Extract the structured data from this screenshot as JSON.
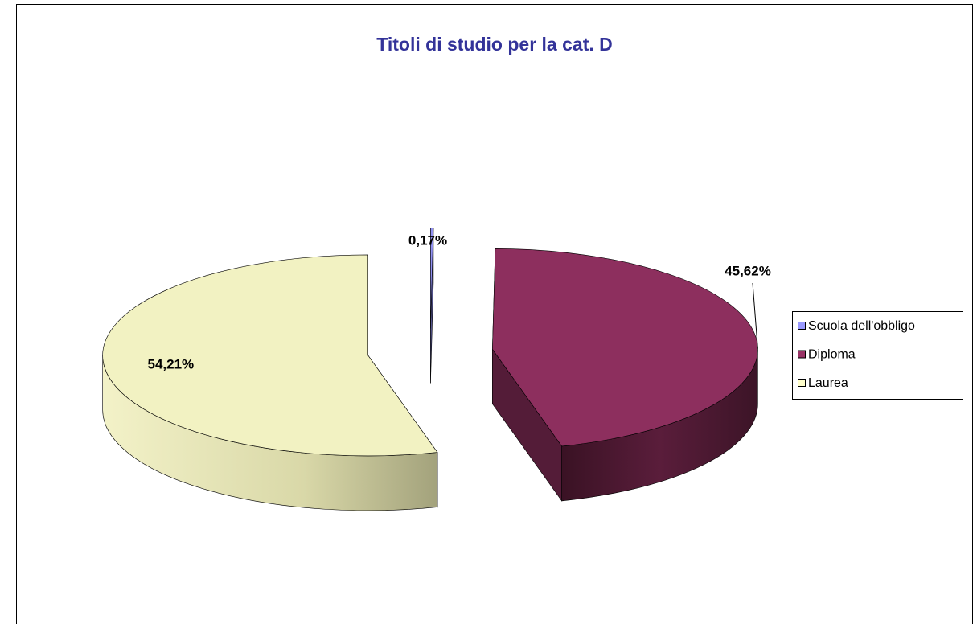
{
  "chart_data": {
    "type": "pie",
    "title": "Titoli di studio per la cat. D",
    "categories": [
      "Scuola dell'obbligo",
      "Diploma",
      "Laurea"
    ],
    "values": [
      0.17,
      45.62,
      54.21
    ],
    "value_labels": [
      "0,17%",
      "45,62%",
      "54,21%"
    ],
    "colors": [
      "#9999ff",
      "#993366",
      "#ffffcc"
    ],
    "legend": "right"
  }
}
